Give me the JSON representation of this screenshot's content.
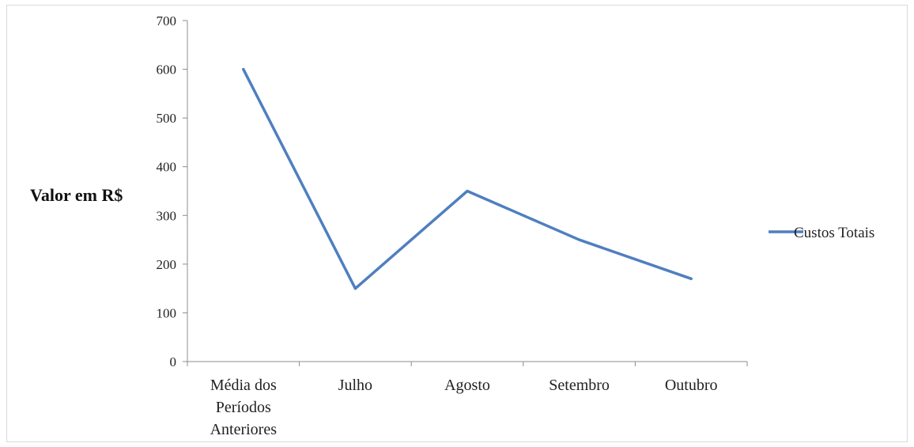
{
  "chart_data": {
    "type": "line",
    "title": "",
    "xlabel": "",
    "ylabel": "Valor em R$",
    "categories": [
      "Média dos Períodos Anteriores",
      "Julho",
      "Agosto",
      "Setembro",
      "Outubro"
    ],
    "category_lines": [
      [
        "Média dos",
        "Períodos",
        "Anteriores"
      ],
      [
        "Julho"
      ],
      [
        "Agosto"
      ],
      [
        "Setembro"
      ],
      [
        "Outubro"
      ]
    ],
    "series": [
      {
        "name": "Custos Totais",
        "values": [
          600,
          150,
          350,
          250,
          170
        ],
        "color": "#4f7fbf"
      }
    ],
    "ylim": [
      0,
      700
    ],
    "yticks": [
      0,
      100,
      200,
      300,
      400,
      500,
      600,
      700
    ],
    "grid": false,
    "legend": "right"
  }
}
